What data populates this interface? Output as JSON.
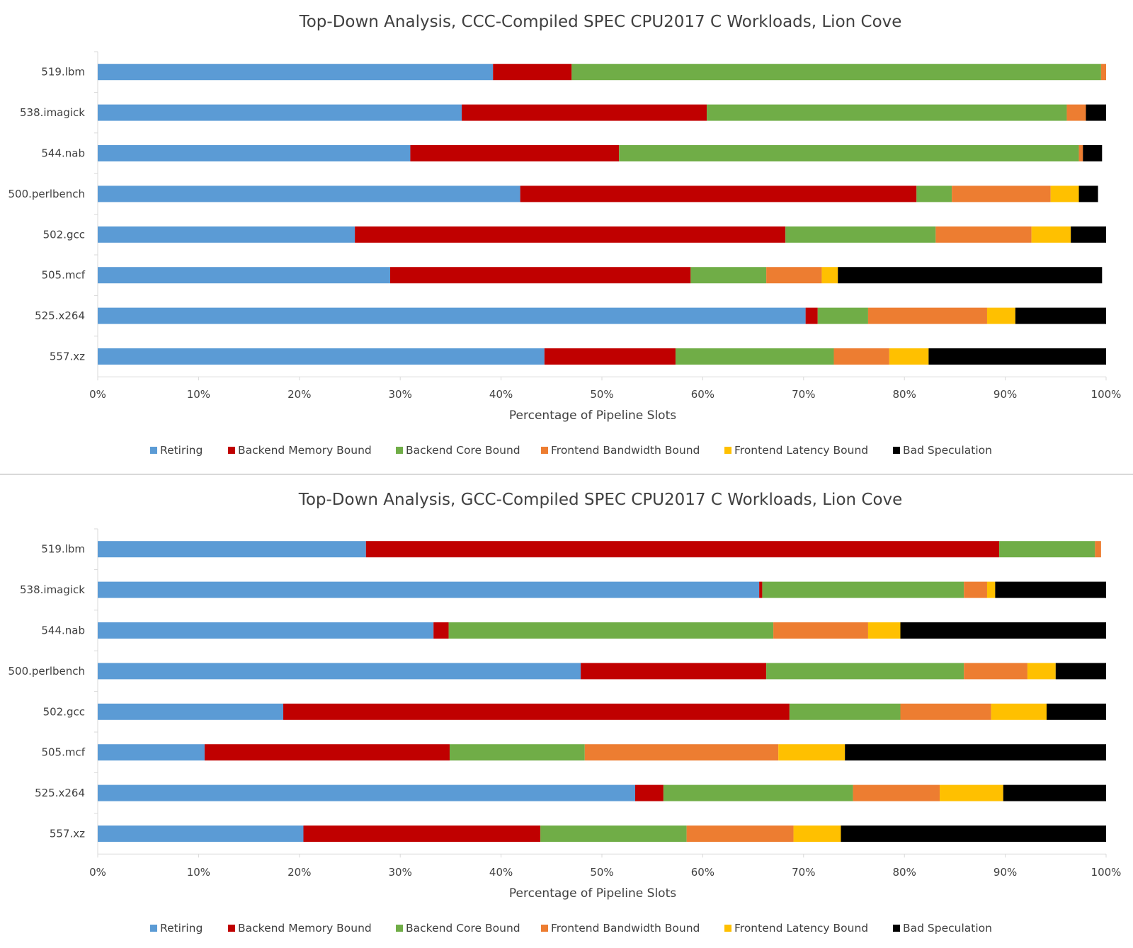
{
  "chart_data": [
    {
      "type": "bar",
      "orientation": "horizontal",
      "stacked": true,
      "title": "Top-Down Analysis, CCC-Compiled SPEC CPU2017 C Workloads, Lion Cove",
      "xlabel": "Percentage of Pipeline Slots",
      "ylabel": "",
      "xlim": [
        0,
        100
      ],
      "x_ticks": [
        "0%",
        "10%",
        "20%",
        "30%",
        "40%",
        "50%",
        "60%",
        "70%",
        "80%",
        "90%",
        "100%"
      ],
      "grid": false,
      "legend_position": "bottom",
      "categories": [
        "519.lbm",
        "538.imagick",
        "544.nab",
        "500.perlbench",
        "502.gcc",
        "505.mcf",
        "525.x264",
        "557.xz"
      ],
      "series": [
        {
          "name": "Retiring",
          "color": "#5b9bd5",
          "values": [
            39.2,
            36.1,
            31.0,
            41.9,
            25.5,
            29.0,
            70.2,
            44.3
          ]
        },
        {
          "name": "Backend Memory Bound",
          "color": "#c00000",
          "values": [
            7.8,
            24.3,
            20.7,
            39.3,
            42.7,
            29.8,
            1.2,
            13.0
          ]
        },
        {
          "name": "Backend Core Bound",
          "color": "#70ad47",
          "values": [
            52.5,
            35.7,
            45.6,
            3.5,
            14.9,
            7.5,
            5.0,
            15.7
          ]
        },
        {
          "name": "Frontend Bandwidth Bound",
          "color": "#ed7d31",
          "values": [
            0.5,
            1.9,
            0.4,
            9.8,
            9.5,
            5.5,
            11.8,
            5.5
          ]
        },
        {
          "name": "Frontend Latency Bound",
          "color": "#ffc000",
          "values": [
            0.0,
            0.0,
            0.0,
            2.8,
            3.9,
            1.6,
            2.8,
            3.9
          ]
        },
        {
          "name": "Bad Speculation",
          "color": "#000000",
          "values": [
            0.0,
            2.0,
            1.9,
            1.9,
            3.5,
            26.2,
            9.0,
            17.6
          ]
        }
      ]
    },
    {
      "type": "bar",
      "orientation": "horizontal",
      "stacked": true,
      "title": "Top-Down Analysis, GCC-Compiled SPEC CPU2017 C Workloads, Lion Cove",
      "xlabel": "Percentage of Pipeline Slots",
      "ylabel": "",
      "xlim": [
        0,
        100
      ],
      "x_ticks": [
        "0%",
        "10%",
        "20%",
        "30%",
        "40%",
        "50%",
        "60%",
        "70%",
        "80%",
        "90%",
        "100%"
      ],
      "grid": false,
      "legend_position": "bottom",
      "categories": [
        "519.lbm",
        "538.imagick",
        "544.nab",
        "500.perlbench",
        "502.gcc",
        "505.mcf",
        "525.x264",
        "557.xz"
      ],
      "series": [
        {
          "name": "Retiring",
          "color": "#5b9bd5",
          "values": [
            26.6,
            65.6,
            33.3,
            47.9,
            18.4,
            10.6,
            53.3,
            20.4
          ]
        },
        {
          "name": "Backend Memory Bound",
          "color": "#c00000",
          "values": [
            62.8,
            0.3,
            1.5,
            18.4,
            50.2,
            24.3,
            2.8,
            23.5
          ]
        },
        {
          "name": "Backend Core Bound",
          "color": "#70ad47",
          "values": [
            9.5,
            20.0,
            32.2,
            19.6,
            11.0,
            13.4,
            18.8,
            14.5
          ]
        },
        {
          "name": "Frontend Bandwidth Bound",
          "color": "#ed7d31",
          "values": [
            0.6,
            2.3,
            9.4,
            6.3,
            9.0,
            19.2,
            8.6,
            10.6
          ]
        },
        {
          "name": "Frontend Latency Bound",
          "color": "#ffc000",
          "values": [
            0.0,
            0.8,
            3.2,
            2.8,
            5.5,
            6.6,
            6.3,
            4.7
          ]
        },
        {
          "name": "Bad Speculation",
          "color": "#000000",
          "values": [
            0.0,
            11.0,
            20.4,
            5.0,
            5.9,
            25.9,
            10.2,
            26.3
          ]
        }
      ]
    }
  ]
}
